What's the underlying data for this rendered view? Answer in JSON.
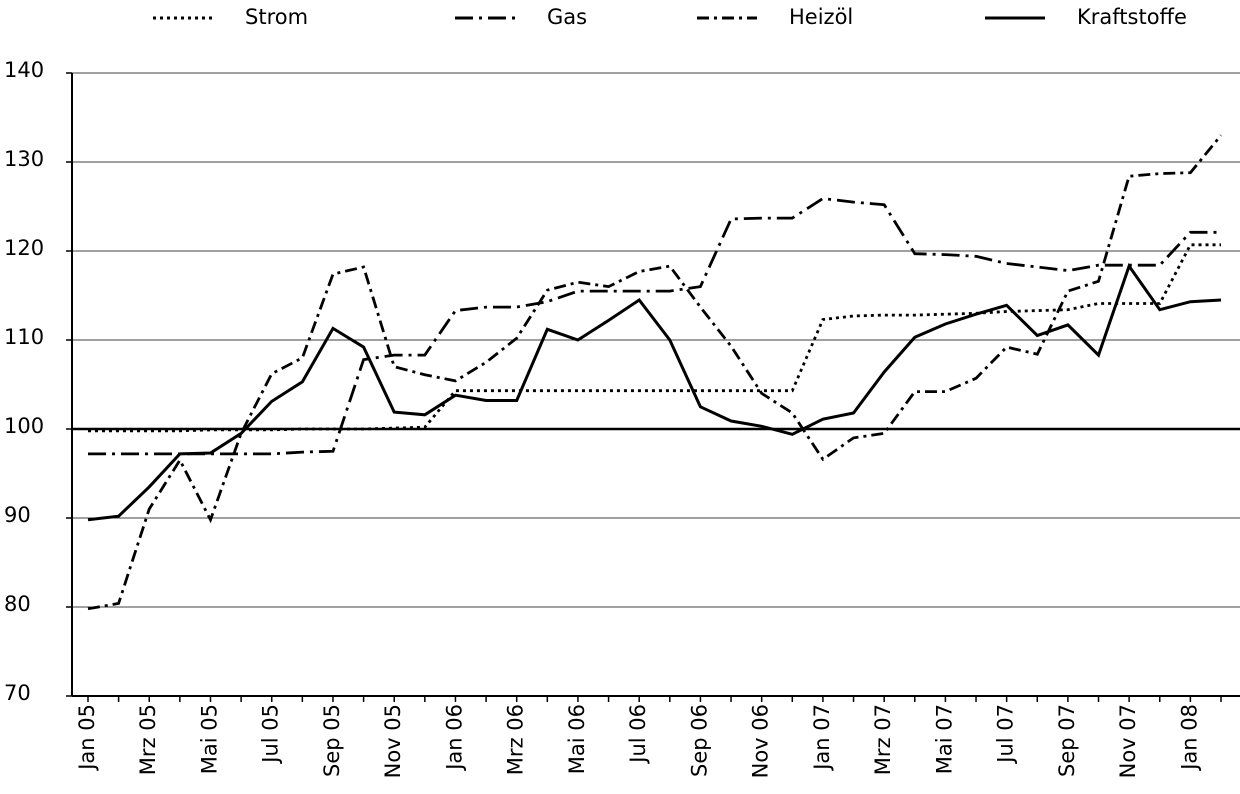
{
  "chart_data": {
    "type": "line",
    "categories": [
      "Jan 05",
      null,
      "Mrz 05",
      null,
      "Mai 05",
      null,
      "Jul 05",
      null,
      "Sep 05",
      null,
      "Nov 05",
      null,
      "Jan 06",
      null,
      "Mrz 06",
      null,
      "Mai 06",
      null,
      "Jul 06",
      null,
      "Sep 06",
      null,
      "Nov 06",
      null,
      "Jan 07",
      null,
      "Mrz 07",
      null,
      "Mai 07",
      null,
      "Jul 07",
      null,
      "Sep 07",
      null,
      "Nov 07",
      null,
      "Jan 08",
      null
    ],
    "series": [
      {
        "name": "Strom",
        "color": "#000000",
        "style": "dotted",
        "values": [
          99.8,
          99.8,
          99.8,
          99.8,
          99.9,
          99.9,
          99.9,
          100.0,
          100.0,
          100.0,
          100.1,
          100.2,
          104.3,
          104.3,
          104.3,
          104.3,
          104.3,
          104.3,
          104.3,
          104.3,
          104.3,
          104.3,
          104.3,
          104.3,
          112.3,
          112.7,
          112.8,
          112.8,
          112.9,
          113.0,
          113.2,
          113.3,
          113.4,
          114.1,
          114.1,
          114.1,
          120.7,
          120.7
        ]
      },
      {
        "name": "Gas",
        "color": "#000000",
        "style": "dashdot",
        "values": [
          97.2,
          97.2,
          97.2,
          97.2,
          97.2,
          97.2,
          97.2,
          97.4,
          97.5,
          107.8,
          108.3,
          108.3,
          113.3,
          113.7,
          113.7,
          114.3,
          115.5,
          115.5,
          115.5,
          115.5,
          116.0,
          123.6,
          123.7,
          123.7,
          125.9,
          125.5,
          125.2,
          119.7,
          119.6,
          119.4,
          118.6,
          118.2,
          117.8,
          118.4,
          118.4,
          118.4,
          122.1,
          122.1
        ]
      },
      {
        "name": "Heizöl",
        "color": "#000000",
        "style": "shortdashdot",
        "values": [
          79.8,
          80.4,
          91.0,
          96.5,
          89.8,
          99.5,
          106.2,
          108.0,
          117.4,
          118.2,
          107.0,
          106.1,
          105.4,
          107.5,
          110.2,
          115.6,
          116.5,
          116.0,
          117.7,
          118.3,
          113.7,
          109.3,
          104.0,
          101.8,
          96.6,
          99.0,
          99.5,
          104.2,
          104.2,
          105.7,
          109.2,
          108.4,
          115.5,
          116.6,
          128.4,
          128.7,
          128.8,
          133.0
        ]
      },
      {
        "name": "Kraftstoffe",
        "color": "#000000",
        "style": "solid",
        "values": [
          89.8,
          90.2,
          93.5,
          97.2,
          97.3,
          99.5,
          103.1,
          105.3,
          111.3,
          109.2,
          101.9,
          101.6,
          103.8,
          103.2,
          103.2,
          111.2,
          110.0,
          112.2,
          114.5,
          110.0,
          102.5,
          100.9,
          100.3,
          99.4,
          101.1,
          101.8,
          106.4,
          110.3,
          111.8,
          112.9,
          113.9,
          110.5,
          111.7,
          108.3,
          118.3,
          113.4,
          114.3,
          114.5
        ]
      }
    ],
    "ylim": [
      70,
      140
    ],
    "yticks": [
      70,
      80,
      90,
      100,
      110,
      120,
      130,
      140
    ],
    "grid": true,
    "reference_line": 100,
    "legend": "top"
  }
}
